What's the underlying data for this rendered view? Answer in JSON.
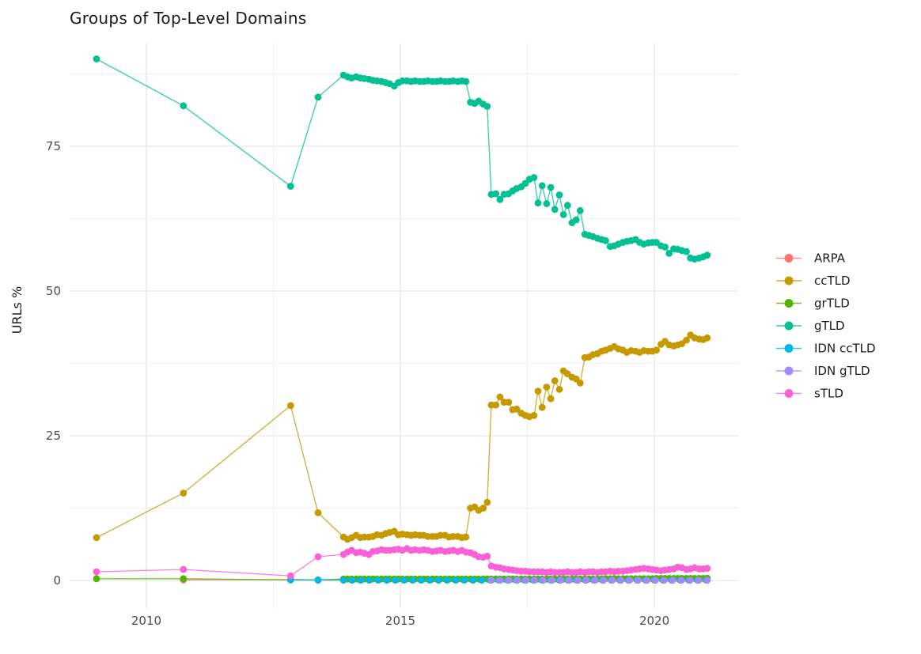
{
  "chart_data": {
    "type": "line",
    "title": "Groups of Top-Level Domains",
    "xlabel": "",
    "ylabel": "URLs %",
    "grid": true,
    "legend": {
      "position": "right"
    },
    "x_axis": {
      "ticks": [
        2010,
        2015,
        2020
      ],
      "tick_labels": [
        "2010",
        "2015",
        "2020"
      ],
      "minor": [
        2012.5,
        2017.5
      ],
      "range": [
        2008.49,
        2021.65
      ]
    },
    "y_axis": {
      "ticks": [
        0,
        25,
        50,
        75
      ],
      "tick_labels": [
        "0",
        "25",
        "50",
        "75"
      ],
      "minor": [
        12.5,
        37.5,
        62.5,
        87.5
      ],
      "range": [
        -4.78,
        92.76
      ]
    },
    "x_dense": [
      2013.88,
      2013.96,
      2014.04,
      2014.13,
      2014.21,
      2014.29,
      2014.38,
      2014.46,
      2014.54,
      2014.63,
      2014.71,
      2014.79,
      2014.88,
      2014.96,
      2015.04,
      2015.13,
      2015.21,
      2015.29,
      2015.38,
      2015.46,
      2015.54,
      2015.63,
      2015.71,
      2015.79,
      2015.88,
      2015.96,
      2016.04,
      2016.13,
      2016.21,
      2016.29,
      2016.38,
      2016.46,
      2016.54,
      2016.63,
      2016.71,
      2016.79,
      2016.88,
      2016.96,
      2017.04,
      2017.13,
      2017.21,
      2017.29,
      2017.38,
      2017.46,
      2017.54,
      2017.63,
      2017.71,
      2017.79,
      2017.88,
      2017.96,
      2018.04,
      2018.13,
      2018.21,
      2018.29,
      2018.38,
      2018.46,
      2018.54,
      2018.63,
      2018.71,
      2018.79,
      2018.88,
      2018.96,
      2019.04,
      2019.13,
      2019.21,
      2019.29,
      2019.38,
      2019.46,
      2019.54,
      2019.63,
      2019.71,
      2019.79,
      2019.88,
      2019.96,
      2020.04,
      2020.13,
      2020.21,
      2020.29,
      2020.38,
      2020.46,
      2020.54,
      2020.63,
      2020.71,
      2020.79,
      2020.88,
      2020.96,
      2021.04
    ],
    "series": [
      {
        "name": "ARPA",
        "color": "#F8766D",
        "x": [
          2010.73,
          2012.84,
          2013.38,
          2013.88,
          2014.04,
          2014.21,
          2014.38
        ],
        "y": [
          0.1,
          0.15,
          0.1,
          0.1,
          0.1,
          0.1,
          0.1
        ]
      },
      {
        "name": "ccTLD",
        "color": "#C49A00",
        "x_early": [
          2009.02,
          2010.73,
          2012.84,
          2013.38
        ],
        "y_early": [
          7.4,
          15.1,
          30.2,
          11.7
        ],
        "y_dense": [
          7.5,
          7.1,
          7.4,
          7.8,
          7.4,
          7.5,
          7.5,
          7.6,
          7.9,
          7.8,
          8.1,
          8.3,
          8.5,
          7.9,
          8.0,
          7.9,
          7.8,
          7.9,
          7.8,
          7.8,
          7.6,
          7.6,
          7.6,
          7.8,
          7.8,
          7.5,
          7.6,
          7.6,
          7.4,
          7.5,
          12.5,
          12.7,
          12.1,
          12.5,
          13.5,
          30.3,
          30.3,
          31.7,
          30.8,
          30.8,
          29.5,
          29.6,
          28.9,
          28.5,
          28.3,
          28.5,
          32.7,
          29.9,
          33.4,
          31.4,
          34.5,
          33.0,
          36.2,
          35.7,
          35.1,
          34.8,
          34.1,
          38.5,
          38.6,
          39.0,
          39.2,
          39.6,
          39.8,
          40.1,
          40.4,
          40.0,
          39.8,
          39.4,
          39.7,
          39.6,
          39.4,
          39.7,
          39.6,
          39.6,
          39.8,
          40.8,
          41.3,
          40.7,
          40.5,
          40.7,
          40.9,
          41.5,
          42.4,
          41.9,
          41.7,
          41.6,
          41.9
        ]
      },
      {
        "name": "grTLD",
        "color": "#53B400",
        "x_early": [
          2009.02,
          2010.73,
          2012.84,
          2013.38
        ],
        "y_early": [
          0.3,
          0.3,
          0.1,
          0.1
        ],
        "y_dense": [
          0.25,
          0.25,
          0.25,
          0.25,
          0.25,
          0.25,
          0.25,
          0.25,
          0.25,
          0.25,
          0.25,
          0.25,
          0.25,
          0.25,
          0.25,
          0.25,
          0.25,
          0.25,
          0.25,
          0.25,
          0.25,
          0.25,
          0.25,
          0.25,
          0.25,
          0.25,
          0.25,
          0.25,
          0.25,
          0.25,
          0.25,
          0.25,
          0.25,
          0.25,
          0.25,
          0.25,
          0.25,
          0.25,
          0.25,
          0.25,
          0.25,
          0.25,
          0.25,
          0.25,
          0.25,
          0.25,
          0.25,
          0.25,
          0.25,
          0.25,
          0.25,
          0.25,
          0.25,
          0.25,
          0.25,
          0.25,
          0.25,
          0.25,
          0.25,
          0.25,
          0.25,
          0.25,
          0.3,
          0.3,
          0.3,
          0.3,
          0.3,
          0.3,
          0.3,
          0.3,
          0.3,
          0.3,
          0.3,
          0.3,
          0.35,
          0.35,
          0.35,
          0.35,
          0.35,
          0.35,
          0.35,
          0.35,
          0.35,
          0.35,
          0.35,
          0.35,
          0.4
        ]
      },
      {
        "name": "gTLD",
        "color": "#00C094",
        "x_early": [
          2009.02,
          2010.73,
          2012.84,
          2013.38
        ],
        "y_early": [
          90.1,
          82.0,
          68.1,
          83.5
        ],
        "y_dense": [
          87.3,
          87.0,
          86.8,
          87.0,
          86.8,
          86.7,
          86.6,
          86.4,
          86.3,
          86.2,
          86.0,
          85.8,
          85.4,
          86.0,
          86.3,
          86.3,
          86.2,
          86.3,
          86.2,
          86.2,
          86.3,
          86.2,
          86.2,
          86.3,
          86.2,
          86.2,
          86.3,
          86.2,
          86.3,
          86.2,
          82.6,
          82.4,
          82.8,
          82.3,
          81.9,
          66.7,
          66.8,
          65.8,
          66.7,
          66.8,
          67.3,
          67.7,
          68.0,
          68.6,
          69.3,
          69.6,
          65.2,
          68.2,
          65.1,
          67.9,
          64.1,
          66.6,
          63.2,
          64.8,
          61.8,
          62.3,
          63.9,
          59.8,
          59.6,
          59.4,
          59.1,
          58.9,
          58.7,
          57.7,
          57.8,
          58.1,
          58.4,
          58.6,
          58.7,
          58.9,
          58.4,
          58.1,
          58.3,
          58.4,
          58.4,
          57.8,
          57.6,
          56.5,
          57.3,
          57.2,
          57.0,
          56.8,
          55.7,
          55.5,
          55.7,
          55.9,
          56.2
        ]
      },
      {
        "name": "IDN ccTLD",
        "color": "#00B6EB",
        "x": [
          2012.84,
          2013.38,
          2013.88,
          2014.05,
          2014.22,
          2014.39,
          2014.56,
          2014.73,
          2014.9,
          2015.07,
          2015.24,
          2015.41,
          2015.58,
          2015.75,
          2015.92,
          2016.09,
          2016.26,
          2016.43,
          2016.6,
          2016.77,
          2016.94,
          2017.11,
          2017.28,
          2017.45,
          2017.62,
          2017.79,
          2017.96,
          2018.13,
          2018.3,
          2018.47,
          2018.64,
          2018.81,
          2018.98,
          2019.15,
          2019.32,
          2019.49,
          2019.66,
          2019.83,
          2020.0,
          2020.17,
          2020.34,
          2020.51,
          2020.68,
          2020.85,
          2021.02
        ],
        "y": [
          0.1,
          0.05,
          0.05,
          0.05,
          0.05,
          0.05,
          0.05,
          0.05,
          0.05,
          0.05,
          0.05,
          0.05,
          0.05,
          0.05,
          0.05,
          0.05,
          0.05,
          0.05,
          0.05,
          0.05,
          0.05,
          0.05,
          0.05,
          0.05,
          0.05,
          0.05,
          0.05,
          0.05,
          0.05,
          0.05,
          0.05,
          0.05,
          0.05,
          0.05,
          0.05,
          0.05,
          0.05,
          0.05,
          0.05,
          0.05,
          0.05,
          0.05,
          0.05,
          0.05,
          0.05
        ]
      },
      {
        "name": "IDN gTLD",
        "color": "#A58AFF",
        "x": [
          2016.79,
          2016.96,
          2017.13,
          2017.3,
          2017.47,
          2017.64,
          2017.81,
          2017.98,
          2018.15,
          2018.32,
          2018.49,
          2018.66,
          2018.83,
          2019.0,
          2019.17,
          2019.34,
          2019.51,
          2019.68,
          2019.85,
          2020.02,
          2020.19,
          2020.36,
          2020.53,
          2020.7,
          2020.87,
          2021.04
        ],
        "y": [
          0.03,
          0.03,
          0.03,
          0.03,
          0.03,
          0.03,
          0.03,
          0.03,
          0.03,
          0.03,
          0.03,
          0.03,
          0.03,
          0.03,
          0.03,
          0.03,
          0.03,
          0.03,
          0.03,
          0.03,
          0.03,
          0.03,
          0.03,
          0.03,
          0.03,
          0.03
        ]
      },
      {
        "name": "sTLD",
        "color": "#FB61D7",
        "x_early": [
          2009.02,
          2010.73,
          2012.84,
          2013.38
        ],
        "y_early": [
          1.5,
          1.9,
          0.8,
          4.1
        ],
        "y_dense": [
          4.5,
          4.9,
          5.2,
          4.8,
          4.9,
          4.7,
          4.5,
          5.0,
          5.1,
          5.3,
          5.2,
          5.2,
          5.3,
          5.4,
          5.2,
          5.5,
          5.2,
          5.3,
          5.2,
          5.3,
          5.2,
          5.0,
          5.1,
          5.2,
          5.0,
          5.1,
          5.2,
          5.0,
          5.2,
          4.9,
          4.8,
          4.5,
          4.1,
          4.0,
          4.2,
          2.5,
          2.3,
          2.2,
          2.0,
          1.9,
          1.8,
          1.7,
          1.6,
          1.6,
          1.5,
          1.5,
          1.5,
          1.5,
          1.4,
          1.5,
          1.4,
          1.4,
          1.4,
          1.5,
          1.4,
          1.4,
          1.5,
          1.4,
          1.5,
          1.5,
          1.4,
          1.5,
          1.5,
          1.6,
          1.5,
          1.6,
          1.6,
          1.7,
          1.8,
          1.9,
          2.0,
          2.1,
          2.0,
          1.9,
          1.8,
          1.7,
          1.8,
          1.9,
          2.0,
          2.3,
          2.2,
          1.9,
          2.0,
          2.2,
          2.0,
          2.0,
          2.1
        ]
      }
    ]
  }
}
